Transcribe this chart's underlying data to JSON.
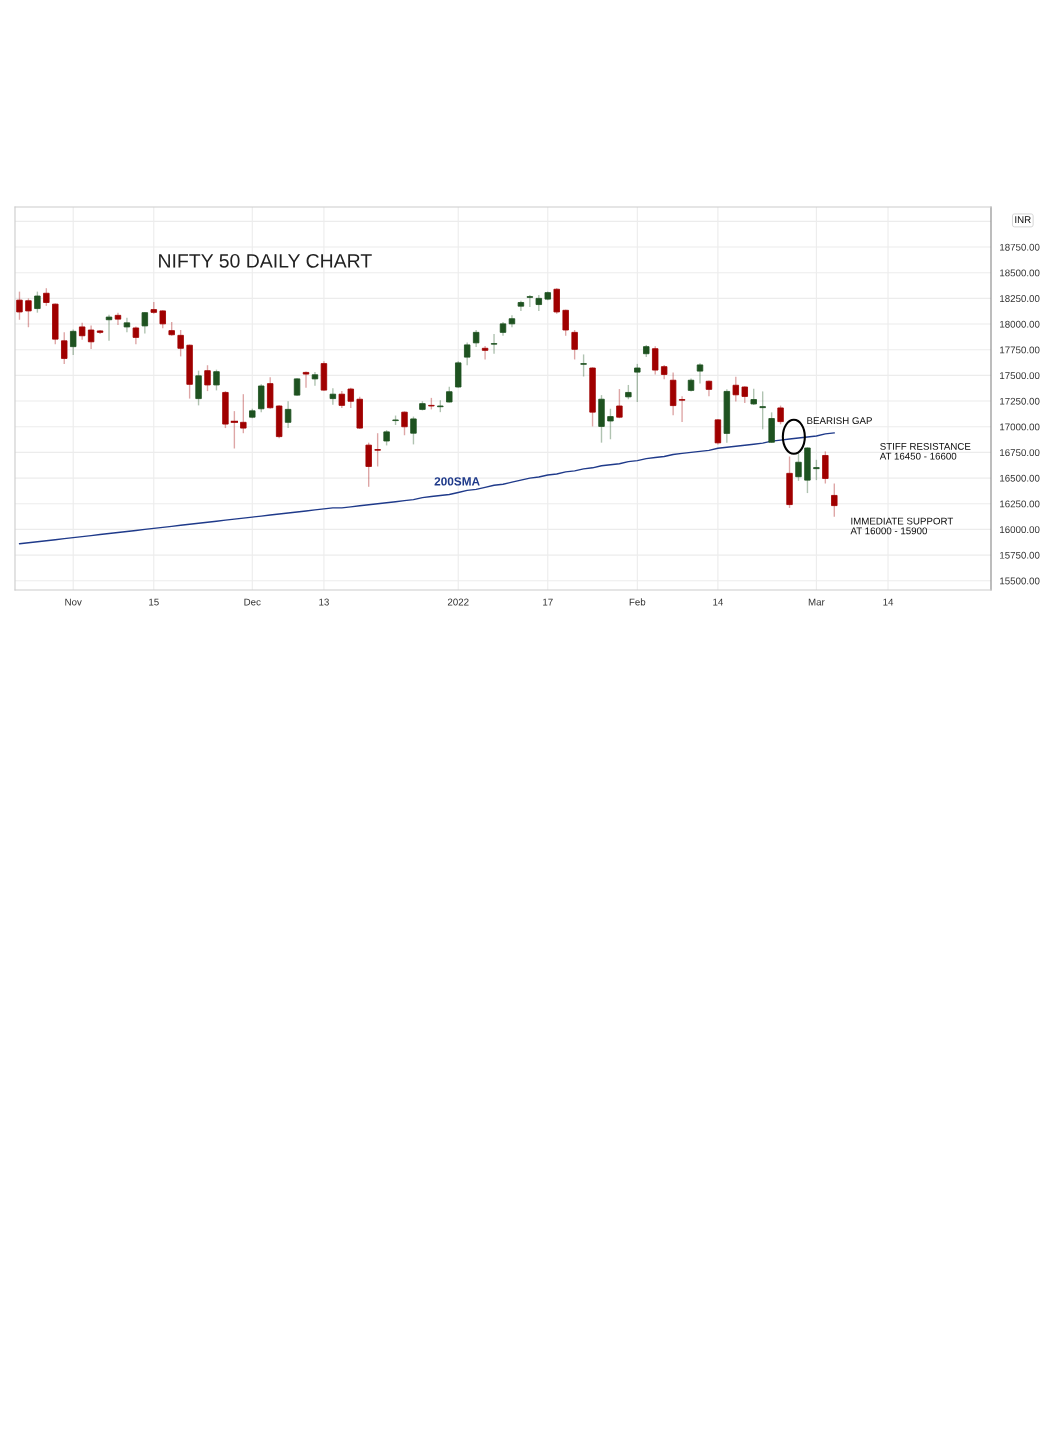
{
  "chart_data": {
    "type": "candlestick",
    "title": "NIFTY 50 DAILY CHART",
    "categories": [
      null,
      null,
      null,
      null,
      null,
      null,
      "Nov",
      null,
      null,
      null,
      null,
      null,
      null,
      null,
      null,
      "15",
      null,
      null,
      null,
      null,
      null,
      null,
      null,
      null,
      null,
      null,
      "Dec",
      null,
      null,
      null,
      null,
      null,
      null,
      null,
      "13",
      null,
      null,
      null,
      null,
      null,
      null,
      null,
      null,
      null,
      null,
      null,
      null,
      null,
      null,
      "2022",
      null,
      null,
      null,
      null,
      null,
      null,
      null,
      null,
      null,
      "17",
      null,
      null,
      null,
      null,
      null,
      null,
      null,
      null,
      null,
      "Feb",
      null,
      null,
      null,
      null,
      null,
      null,
      null,
      null,
      "14",
      null,
      null,
      null,
      null,
      null,
      null,
      null,
      null,
      null,
      null,
      "Mar",
      null,
      null,
      null,
      null,
      null,
      null,
      null,
      "14",
      null,
      null,
      null,
      null,
      null,
      null,
      null,
      null,
      null,
      null,
      null
    ],
    "ohlc": [
      [
        18233,
        18316,
        18042,
        18118
      ],
      [
        18227,
        18250,
        17969,
        18128
      ],
      [
        18151,
        18316,
        18111,
        18273
      ],
      [
        18300,
        18349,
        18177,
        18210
      ],
      [
        18194,
        18200,
        17804,
        17853
      ],
      [
        17837,
        17919,
        17612,
        17665
      ],
      [
        17780,
        17946,
        17698,
        17929
      ],
      [
        17972,
        18012,
        17847,
        17886
      ],
      [
        17942,
        17985,
        17757,
        17827
      ],
      [
        17933,
        17942,
        17903,
        17919
      ],
      [
        18042,
        18091,
        17837,
        18068
      ],
      [
        18085,
        18111,
        17992,
        18048
      ],
      [
        17972,
        18061,
        17919,
        18012
      ],
      [
        17962,
        17976,
        17804,
        17870
      ],
      [
        17982,
        18118,
        17909,
        18111
      ],
      [
        18141,
        18214,
        18101,
        18114
      ],
      [
        18128,
        18135,
        17959,
        18002
      ],
      [
        17936,
        18019,
        17886,
        17896
      ],
      [
        17890,
        17942,
        17685,
        17764
      ],
      [
        17794,
        17800,
        17274,
        17413
      ],
      [
        17274,
        17546,
        17208,
        17496
      ],
      [
        17546,
        17599,
        17347,
        17407
      ],
      [
        17407,
        17556,
        17354,
        17536
      ],
      [
        17334,
        17347,
        16987,
        17026
      ],
      [
        17050,
        17152,
        16788,
        17046
      ],
      [
        17043,
        17317,
        16937,
        16987
      ],
      [
        17093,
        17175,
        17083,
        17155
      ],
      [
        17175,
        17413,
        17142,
        17397
      ],
      [
        17420,
        17483,
        17175,
        17185
      ],
      [
        17202,
        17210,
        16888,
        16904
      ],
      [
        17043,
        17248,
        16987,
        17169
      ],
      [
        17308,
        17473,
        17301,
        17466
      ],
      [
        17529,
        17539,
        17380,
        17513
      ],
      [
        17466,
        17533,
        17400,
        17506
      ],
      [
        17615,
        17638,
        17350,
        17357
      ],
      [
        17274,
        17374,
        17215,
        17317
      ],
      [
        17317,
        17347,
        17182,
        17208
      ],
      [
        17367,
        17380,
        17182,
        17248
      ],
      [
        17268,
        17291,
        16977,
        16987
      ],
      [
        16821,
        16845,
        16415,
        16613
      ],
      [
        16778,
        16937,
        16613,
        16771
      ],
      [
        16861,
        16967,
        16818,
        16950
      ],
      [
        17060,
        17109,
        17017,
        17066
      ],
      [
        17142,
        17150,
        16917,
        17000
      ],
      [
        16937,
        17099,
        16828,
        17076
      ],
      [
        17169,
        17248,
        17159,
        17225
      ],
      [
        17208,
        17281,
        17169,
        17202
      ],
      [
        17195,
        17258,
        17142,
        17202
      ],
      [
        17241,
        17390,
        17235,
        17341
      ],
      [
        17387,
        17638,
        17380,
        17622
      ],
      [
        17678,
        17820,
        17599,
        17797
      ],
      [
        17817,
        17942,
        17777,
        17919
      ],
      [
        17764,
        17787,
        17655,
        17744
      ],
      [
        17804,
        17903,
        17711,
        17810
      ],
      [
        17919,
        18019,
        17886,
        18002
      ],
      [
        18002,
        18085,
        17969,
        18052
      ],
      [
        18174,
        18227,
        18128,
        18210
      ],
      [
        18260,
        18283,
        18167,
        18267
      ],
      [
        18190,
        18283,
        18128,
        18250
      ],
      [
        18243,
        18316,
        18233,
        18306
      ],
      [
        18339,
        18349,
        18101,
        18118
      ],
      [
        18134,
        18140,
        17886,
        17942
      ],
      [
        17919,
        17942,
        17655,
        17754
      ],
      [
        17608,
        17704,
        17489,
        17615
      ],
      [
        17572,
        17579,
        17003,
        17142
      ],
      [
        17003,
        17308,
        16845,
        17268
      ],
      [
        17056,
        17175,
        16878,
        17099
      ],
      [
        17202,
        17367,
        17083,
        17093
      ],
      [
        17291,
        17407,
        17268,
        17334
      ],
      [
        17532,
        17612,
        17241,
        17572
      ],
      [
        17711,
        17797,
        17678,
        17780
      ],
      [
        17760,
        17783,
        17509,
        17552
      ],
      [
        17585,
        17602,
        17463,
        17509
      ],
      [
        17453,
        17529,
        17113,
        17206
      ],
      [
        17265,
        17298,
        17047,
        17258
      ],
      [
        17354,
        17470,
        17344,
        17453
      ],
      [
        17542,
        17618,
        17420,
        17602
      ],
      [
        17443,
        17450,
        17298,
        17364
      ],
      [
        17067,
        17075,
        16826,
        16843
      ],
      [
        16935,
        17364,
        16843,
        17344
      ],
      [
        17404,
        17486,
        17245,
        17311
      ],
      [
        17387,
        17395,
        17232,
        17295
      ],
      [
        17222,
        17370,
        17212,
        17265
      ],
      [
        17186,
        17344,
        16975,
        17196
      ],
      [
        16849,
        17140,
        16843,
        17080
      ],
      [
        17183,
        17206,
        17024,
        17050
      ],
      [
        16546,
        16710,
        16209,
        16242
      ],
      [
        16513,
        16744,
        16473,
        16654
      ],
      [
        16480,
        16800,
        16354,
        16793
      ],
      [
        16592,
        16678,
        16480,
        16602
      ],
      [
        16720,
        16760,
        16447,
        16496
      ],
      [
        16331,
        16447,
        16123,
        16232
      ],
      null,
      null,
      null,
      null,
      null,
      null,
      null,
      null,
      null,
      null,
      null,
      null,
      null,
      null,
      null,
      null,
      null
    ],
    "colors": [
      "#a00000",
      "#a00000",
      "#1e5220",
      "#a00000",
      "#a00000",
      "#a00000",
      "#1e5220",
      "#a00000",
      "#a00000",
      "#a00000",
      "#1e5220",
      "#a00000",
      "#1e5220",
      "#a00000",
      "#1e5220",
      "#a00000",
      "#a00000",
      "#a00000",
      "#a00000",
      "#a00000",
      "#1e5220",
      "#a00000",
      "#1e5220",
      "#a00000",
      "#a00000",
      "#a00000",
      "#1e5220",
      "#1e5220",
      "#a00000",
      "#a00000",
      "#1e5220",
      "#1e5220",
      "#a00000",
      "#1e5220",
      "#a00000",
      "#1e5220",
      "#a00000",
      "#a00000",
      "#a00000",
      "#a00000",
      "#a00000",
      "#1e5220",
      "#1e5220",
      "#a00000",
      "#1e5220",
      "#1e5220",
      "#a00000",
      "#1e5220",
      "#1e5220",
      "#1e5220",
      "#1e5220",
      "#1e5220",
      "#a00000",
      "#1e5220",
      "#1e5220",
      "#1e5220",
      "#1e5220",
      "#1e5220",
      "#1e5220",
      "#1e5220",
      "#a00000",
      "#a00000",
      "#a00000",
      "#1e5220",
      "#a00000",
      "#1e5220",
      "#1e5220",
      "#a00000",
      "#1e5220",
      "#1e5220",
      "#1e5220",
      "#a00000",
      "#a00000",
      "#a00000",
      "#a00000",
      "#1e5220",
      "#1e5220",
      "#a00000",
      "#a00000",
      "#1e5220",
      "#a00000",
      "#a00000",
      "#1e5220",
      "#1e5220",
      "#1e5220",
      "#a00000",
      "#a00000",
      "#1e5220",
      "#1e5220",
      "#1e5220",
      "#a00000",
      "#a00000",
      null,
      null,
      null,
      null,
      null,
      null,
      null,
      null,
      null,
      null,
      null,
      null,
      null,
      null,
      null,
      null,
      null
    ],
    "series": [
      {
        "type": "line",
        "name": "200SMA",
        "color": "#1f3a8a",
        "values": [
          15860,
          15870,
          15880,
          15890,
          15900,
          15910,
          15920,
          15930,
          15940,
          15950,
          15960,
          15970,
          15980,
          15990,
          16000,
          16010,
          16020,
          16030,
          16040,
          16050,
          16060,
          16070,
          16080,
          16090,
          16100,
          16110,
          16120,
          16130,
          16140,
          16150,
          16160,
          16170,
          16180,
          16190,
          16200,
          16210,
          16210,
          16220,
          16230,
          16240,
          16250,
          16260,
          16270,
          16280,
          16290,
          16310,
          16320,
          16330,
          16340,
          16360,
          16380,
          16390,
          16410,
          16430,
          16440,
          16460,
          16480,
          16500,
          16510,
          16530,
          16540,
          16560,
          16570,
          16590,
          16600,
          16620,
          16630,
          16640,
          16660,
          16670,
          16690,
          16700,
          16710,
          16730,
          16740,
          16750,
          16760,
          16770,
          16790,
          16800,
          16810,
          16820,
          16830,
          16840,
          16860,
          16870,
          16880,
          16890,
          16900,
          16910,
          16930,
          16940,
          null,
          null,
          null,
          null,
          null,
          null,
          null,
          null,
          null,
          null,
          null,
          null,
          null,
          null,
          null,
          null,
          null
        ]
      }
    ],
    "ylim": [
      15410,
      19140
    ],
    "yticks": [
      {
        "value": 15500,
        "label": "15500.00"
      },
      {
        "value": 15750,
        "label": "15750.00"
      },
      {
        "value": 16000,
        "label": "16000.00"
      },
      {
        "value": 16250,
        "label": "16250.00"
      },
      {
        "value": 16500,
        "label": "16500.00"
      },
      {
        "value": 16750,
        "label": "16750.00"
      },
      {
        "value": 17000,
        "label": "17000.00"
      },
      {
        "value": 17250,
        "label": "17250.00"
      },
      {
        "value": 17500,
        "label": "17500.00"
      },
      {
        "value": 17750,
        "label": "17750.00"
      },
      {
        "value": 18000,
        "label": "18000.00"
      },
      {
        "value": 18250,
        "label": "18250.00"
      },
      {
        "value": 18500,
        "label": "18500.00"
      },
      {
        "value": 18750,
        "label": "18750.00"
      },
      {
        "value": 19000,
        "label": null
      }
    ],
    "grid": true,
    "annotations": [
      "BEARISH GAP",
      "STIFF RESISTANCE\nAT 16450 - 16600",
      "IMMEDIATE SUPPORT\nAT 16000 - 15900",
      "INR"
    ]
  }
}
